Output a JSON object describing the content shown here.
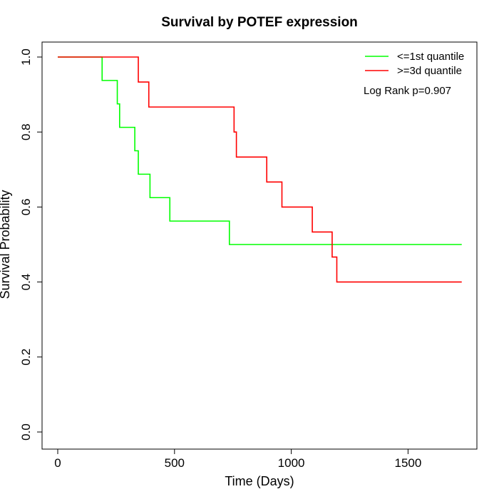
{
  "chart_data": {
    "type": "line",
    "title": "Survival by POTEF expression",
    "xlabel": "Time (Days)",
    "ylabel": "Survival Probability",
    "xlim": [
      0,
      1730
    ],
    "ylim": [
      0,
      1.0
    ],
    "xticks": [
      0,
      500,
      1000,
      1500
    ],
    "yticks": [
      0.0,
      0.2,
      0.4,
      0.6,
      0.8,
      1.0
    ],
    "xtick_labels": [
      "0",
      "500",
      "1000",
      "1500"
    ],
    "ytick_labels": [
      "0.0",
      "0.2",
      "0.4",
      "0.6",
      "0.8",
      "1.0"
    ],
    "step": true,
    "grid": false,
    "legend_position": "top-right",
    "annotation": "Log Rank p=0.907",
    "series": [
      {
        "name": "<=1st quantile",
        "color": "#00ff00",
        "points": [
          [
            0,
            1.0
          ],
          [
            190,
            0.9375
          ],
          [
            255,
            0.875
          ],
          [
            265,
            0.8125
          ],
          [
            330,
            0.75
          ],
          [
            345,
            0.6875
          ],
          [
            395,
            0.625
          ],
          [
            480,
            0.5625
          ],
          [
            735,
            0.5
          ],
          [
            1730,
            0.5
          ]
        ]
      },
      {
        "name": ">=3d quantile",
        "color": "#ff0000",
        "points": [
          [
            0,
            1.0
          ],
          [
            345,
            0.9333
          ],
          [
            390,
            0.8667
          ],
          [
            755,
            0.8
          ],
          [
            765,
            0.7333
          ],
          [
            895,
            0.6667
          ],
          [
            960,
            0.6
          ],
          [
            1090,
            0.5333
          ],
          [
            1175,
            0.4667
          ],
          [
            1195,
            0.4
          ],
          [
            1730,
            0.4
          ]
        ]
      }
    ]
  }
}
